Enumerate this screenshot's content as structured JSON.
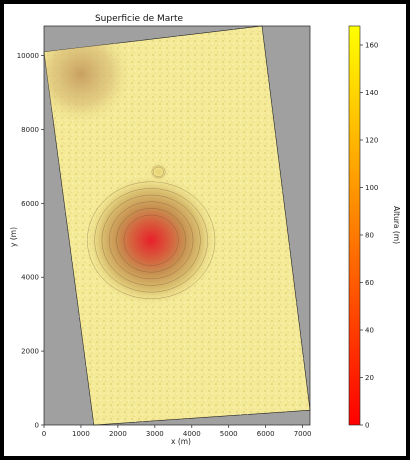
{
  "chart_data": {
    "type": "heatmap",
    "title": "Superficie de Marte",
    "xlabel": "x (m)",
    "ylabel": "y (m)",
    "xlim": [
      0,
      7200
    ],
    "ylim": [
      0,
      10800
    ],
    "x_ticks": [
      0,
      1000,
      2000,
      3000,
      4000,
      5000,
      6000,
      7000
    ],
    "y_ticks": [
      0,
      2000,
      4000,
      6000,
      8000,
      10000
    ],
    "colorbar": {
      "label": "Altura (m)",
      "range": [
        0,
        168
      ],
      "ticks": [
        0,
        20,
        40,
        60,
        80,
        100,
        120,
        140,
        160
      ],
      "colormap": "autumn",
      "colors": [
        "#ff0000",
        "#ff8000",
        "#ffff00"
      ]
    },
    "background_color": "#a0a0a0",
    "footprint_corners": [
      {
        "x": 0,
        "y": 10100
      },
      {
        "x": 5900,
        "y": 10800
      },
      {
        "x": 7200,
        "y": 400
      },
      {
        "x": 1350,
        "y": 0
      }
    ],
    "features": [
      {
        "name": "main_crater",
        "x": 2900,
        "y": 5000,
        "radius": 1800,
        "height": 160
      },
      {
        "name": "small_crater",
        "x": 3100,
        "y": 6850,
        "radius": 350,
        "height": 70
      },
      {
        "name": "northwest_ridges",
        "x": 1000,
        "y": 9500,
        "radius": 1400,
        "height": 45
      }
    ]
  }
}
